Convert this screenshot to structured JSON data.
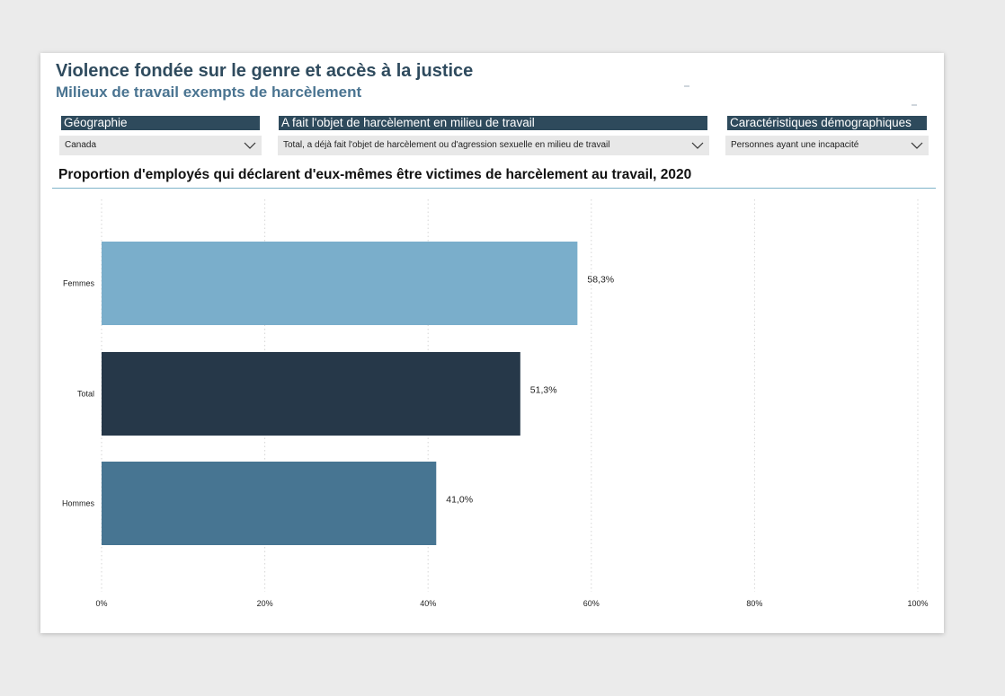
{
  "header": {
    "title": "Violence fondée sur le genre et accès à la justice",
    "subtitle": "Milieux de travail exempts de harcèlement"
  },
  "filters": [
    {
      "label": "Géographie",
      "value": "Canada"
    },
    {
      "label": "A fait l'objet de harcèlement en milieu de travail",
      "value": "Total, a déjà fait l'objet de harcèlement ou d'agression sexuelle en milieu de travail"
    },
    {
      "label": "Caractéristiques démographiques",
      "value": "Personnes ayant une incapacité"
    }
  ],
  "icons": {
    "dropdown": "chevron-down-icon"
  },
  "chart_data": {
    "type": "bar",
    "orientation": "horizontal",
    "title": "Proportion d'employés qui déclarent d'eux-mêmes être victimes de harcèlement au travail, 2020",
    "categories": [
      "Femmes",
      "Total",
      "Hommes"
    ],
    "values": [
      58.3,
      51.3,
      41.0
    ],
    "value_labels": [
      "58,3%",
      "51,3%",
      "41,0%"
    ],
    "colors": [
      "#7aaecb",
      "#263849",
      "#477592"
    ],
    "xlim": [
      0,
      100
    ],
    "xticks": [
      "0%",
      "20%",
      "40%",
      "60%",
      "80%",
      "100%"
    ],
    "grid": true,
    "legend": "none"
  }
}
